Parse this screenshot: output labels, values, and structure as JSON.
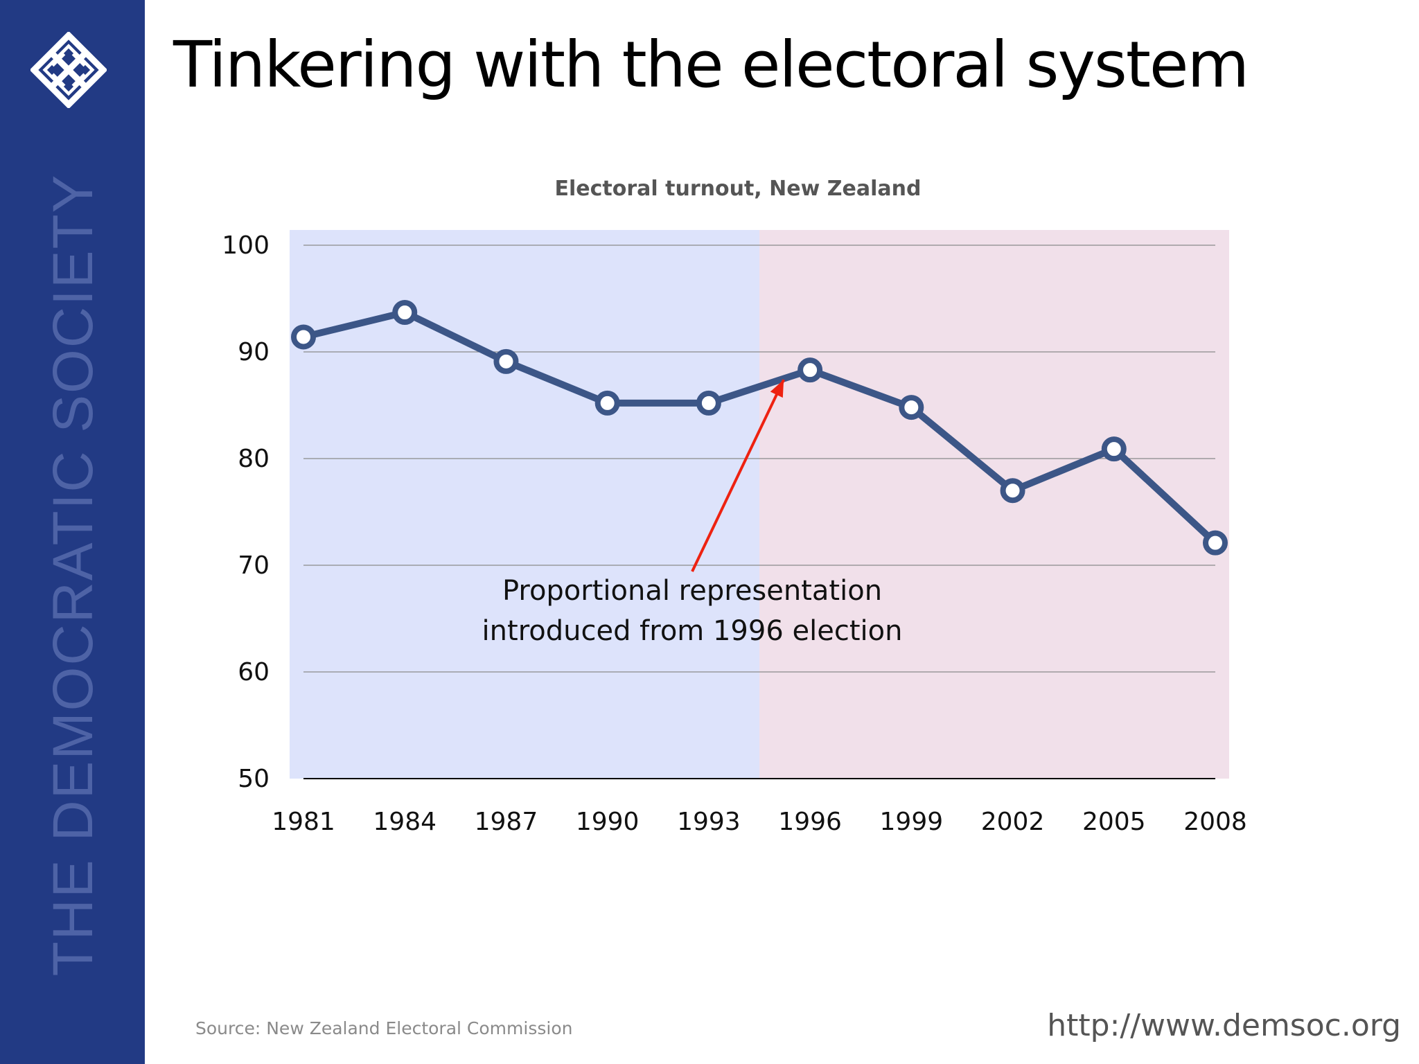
{
  "sidebar": {
    "org_name": "THE DEMOCRATIC SOCIETY",
    "logo_icon": "interlaced-knot-icon"
  },
  "page_title": "Tinkering with the electoral system",
  "chart_data": {
    "type": "line",
    "title": "Electoral turnout, New Zealand",
    "xlabel": "",
    "ylabel": "",
    "categories": [
      "1981",
      "1984",
      "1987",
      "1990",
      "1993",
      "1996",
      "1999",
      "2002",
      "2005",
      "2008"
    ],
    "series": [
      {
        "values": [
          91.4,
          93.7,
          89.1,
          85.2,
          85.2,
          88.3,
          84.8,
          77.0,
          80.9,
          72.1
        ]
      }
    ],
    "ylim": [
      50,
      100
    ],
    "yticks": [
      50,
      60,
      70,
      80,
      90,
      100
    ],
    "grid": true,
    "legend": "none",
    "regions": [
      {
        "from": "1981",
        "to": "1993",
        "color": "#dde3fb"
      },
      {
        "from": "1996",
        "to": "2008",
        "color": "#f1e0ea"
      }
    ],
    "annotation": {
      "lines": [
        "Proportional representation",
        "introduced from 1996 election"
      ],
      "target": "1996",
      "arrow_color": "#ee2211"
    },
    "line_color": "#3c5687"
  },
  "footer": {
    "source": "Source: New Zealand Electoral Commission",
    "url": "http://www.demsoc.org"
  }
}
